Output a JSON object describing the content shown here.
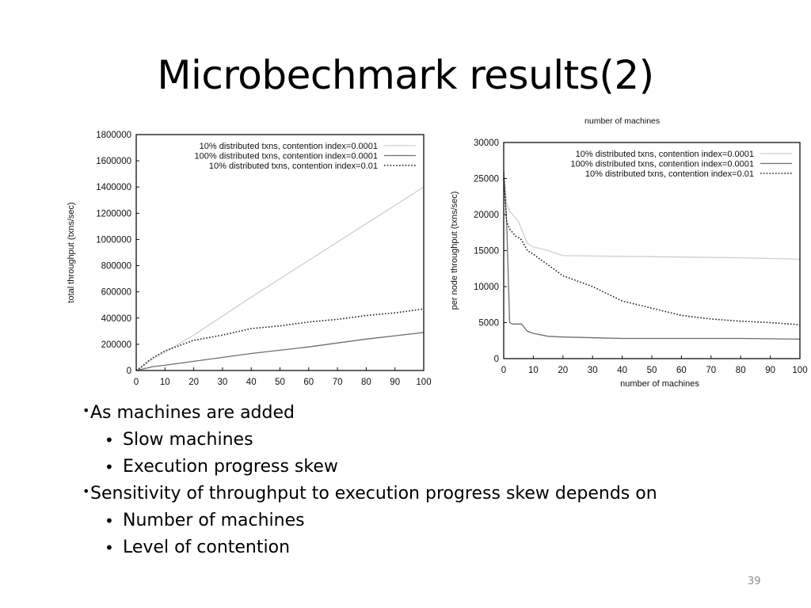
{
  "slide": {
    "title": "Microbechmark results(2)",
    "slide_number": "39"
  },
  "bullets": [
    {
      "text": "As machines are added",
      "children": [
        "Slow machines",
        "Execution progress skew"
      ]
    },
    {
      "text": "Sensitivity of throughput to execution progress skew depends on",
      "children": [
        "Number of machines",
        "Level of contention"
      ]
    }
  ],
  "chart_data": [
    {
      "type": "line",
      "title": "",
      "xlabel": "",
      "ylabel": "total throughput (txns/sec)",
      "xlim": [
        0,
        100
      ],
      "ylim": [
        0,
        1800000
      ],
      "x_ticks": [
        0,
        10,
        20,
        30,
        40,
        50,
        60,
        70,
        80,
        90,
        100
      ],
      "y_ticks": [
        0,
        200000,
        400000,
        600000,
        800000,
        1000000,
        1200000,
        1400000,
        1600000,
        1800000
      ],
      "legend_position": "top-right",
      "series": [
        {
          "name": "10% distributed txns, contention index=0.0001",
          "style": "solid",
          "color": "#cfcfcf",
          "x": [
            0,
            2,
            4,
            6,
            10,
            20,
            40,
            60,
            80,
            100
          ],
          "y": [
            0,
            30000,
            60000,
            90000,
            140000,
            270000,
            560000,
            840000,
            1120000,
            1400000
          ]
        },
        {
          "name": "100% distributed txns, contention index=0.0001",
          "style": "solid",
          "color": "#6e6e6e",
          "x": [
            0,
            2,
            4,
            6,
            10,
            20,
            40,
            60,
            80,
            100
          ],
          "y": [
            0,
            10000,
            20000,
            30000,
            40000,
            70000,
            130000,
            180000,
            240000,
            290000
          ]
        },
        {
          "name": "10% distributed txns, contention index=0.01",
          "style": "dotted",
          "color": "#222222",
          "x": [
            0,
            2,
            4,
            6,
            10,
            20,
            30,
            40,
            50,
            60,
            70,
            80,
            90,
            100
          ],
          "y": [
            0,
            30000,
            70000,
            100000,
            150000,
            230000,
            270000,
            320000,
            340000,
            370000,
            390000,
            420000,
            440000,
            470000
          ]
        }
      ]
    },
    {
      "type": "line",
      "title": "number of machines",
      "xlabel": "number of machines",
      "ylabel": "per node throughput (txns/sec)",
      "xlim": [
        0,
        100
      ],
      "ylim": [
        0,
        30000
      ],
      "x_ticks": [
        0,
        10,
        20,
        30,
        40,
        50,
        60,
        70,
        80,
        90,
        100
      ],
      "y_ticks": [
        0,
        5000,
        10000,
        15000,
        20000,
        25000,
        30000
      ],
      "legend_position": "top-right",
      "series": [
        {
          "name": "10% distributed txns, contention index=0.0001",
          "style": "solid",
          "color": "#cfcfcf",
          "x": [
            0,
            1,
            2,
            3,
            4,
            5,
            6,
            8,
            10,
            15,
            20,
            40,
            60,
            80,
            100
          ],
          "y": [
            26000,
            21500,
            20500,
            20000,
            19500,
            19000,
            18000,
            16000,
            15500,
            15000,
            14300,
            14200,
            14100,
            14000,
            13800
          ]
        },
        {
          "name": "100% distributed txns, contention index=0.0001",
          "style": "solid",
          "color": "#6e6e6e",
          "x": [
            0,
            1,
            2,
            3,
            4,
            5,
            6,
            8,
            10,
            15,
            20,
            40,
            60,
            80,
            100
          ],
          "y": [
            26000,
            19000,
            5000,
            4800,
            4800,
            4800,
            4800,
            3800,
            3500,
            3100,
            3000,
            2800,
            2800,
            2800,
            2700
          ]
        },
        {
          "name": "10% distributed txns, contention index=0.01",
          "style": "dotted",
          "color": "#222222",
          "x": [
            0,
            1,
            2,
            3,
            4,
            5,
            6,
            8,
            10,
            15,
            20,
            30,
            40,
            50,
            60,
            70,
            80,
            90,
            100
          ],
          "y": [
            25000,
            19000,
            18000,
            17500,
            17000,
            16800,
            16500,
            15000,
            14500,
            13000,
            11500,
            10000,
            8000,
            7000,
            6000,
            5500,
            5200,
            5000,
            4700
          ]
        }
      ]
    }
  ]
}
